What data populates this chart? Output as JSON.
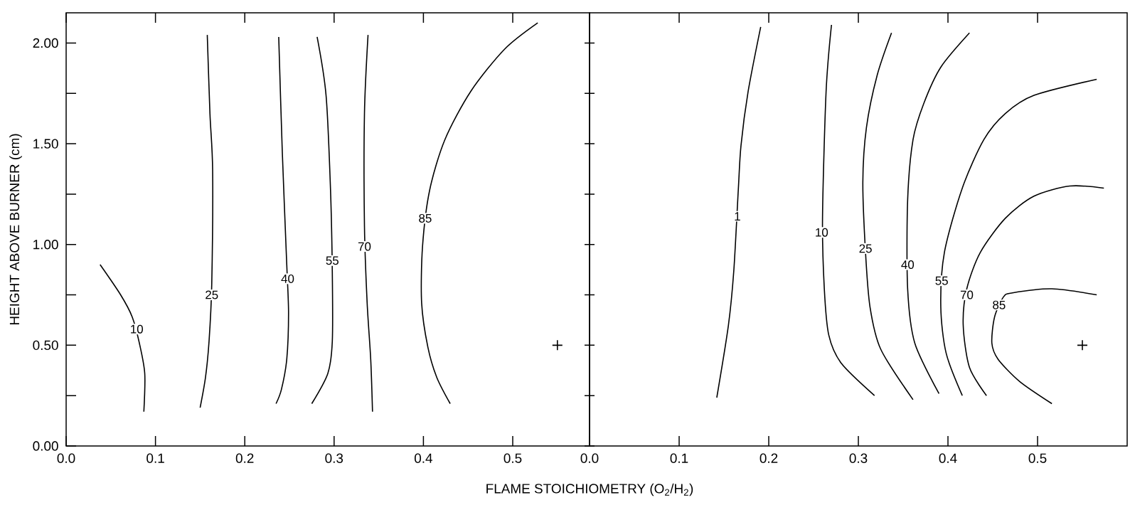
{
  "chart_data": [
    {
      "type": "line",
      "ylabel": "HEIGHT ABOVE BURNER (cm)",
      "xlabel": "FLAME STOICHIOMETRY (O$_{2}$/H$_{2}$)",
      "xlim": [
        0,
        0.586
      ],
      "ylim": [
        0,
        2.15
      ],
      "xticks": [
        {
          "value": 0,
          "label": "0.0"
        },
        {
          "value": 0.1,
          "label": "0.1"
        },
        {
          "value": 0.2,
          "label": "0.2"
        },
        {
          "value": 0.3,
          "label": "0.3"
        },
        {
          "value": 0.4,
          "label": "0.4"
        },
        {
          "value": 0.5,
          "label": "0.5"
        }
      ],
      "yticks": [
        {
          "value": 0,
          "label": "0.00"
        },
        {
          "value": 0.25,
          "label": null
        },
        {
          "value": 0.5,
          "label": "0.50"
        },
        {
          "value": 0.75,
          "label": null
        },
        {
          "value": 1.0,
          "label": "1.00"
        },
        {
          "value": 1.25,
          "label": null
        },
        {
          "value": 1.5,
          "label": "1.50"
        },
        {
          "value": 1.75,
          "label": null
        },
        {
          "value": 2.0,
          "label": "2.00"
        }
      ],
      "series": [
        {
          "color": "#000000",
          "x": [
            0.038,
            0.061,
            0.074,
            0.082,
            0.088,
            0.087
          ],
          "values": [
            0.9,
            0.75,
            0.64,
            0.51,
            0.36,
            0.17
          ]
        },
        {
          "color": "#000000",
          "x": [
            0.158,
            0.161,
            0.164,
            0.163,
            0.16,
            0.156,
            0.15
          ],
          "values": [
            2.04,
            1.65,
            1.37,
            0.8,
            0.52,
            0.34,
            0.19
          ]
        },
        {
          "color": "#000000",
          "x": [
            0.238,
            0.242,
            0.247,
            0.249,
            0.247,
            0.241,
            0.235
          ],
          "values": [
            2.03,
            1.46,
            0.9,
            0.66,
            0.43,
            0.28,
            0.21
          ]
        },
        {
          "color": "#000000",
          "x": [
            0.281,
            0.291,
            0.296,
            0.298,
            0.298,
            0.293,
            0.275
          ],
          "values": [
            2.03,
            1.74,
            1.27,
            0.86,
            0.52,
            0.36,
            0.21
          ]
        },
        {
          "color": "#000000",
          "x": [
            0.338,
            0.334,
            0.334,
            0.337,
            0.341,
            0.343
          ],
          "values": [
            2.04,
            1.65,
            1.09,
            0.71,
            0.43,
            0.17
          ]
        },
        {
          "color": "#000000",
          "x": [
            0.528,
            0.491,
            0.453,
            0.424,
            0.407,
            0.399,
            0.398,
            0.405,
            0.415,
            0.43
          ],
          "values": [
            2.1,
            1.97,
            1.76,
            1.52,
            1.27,
            0.99,
            0.71,
            0.49,
            0.34,
            0.21
          ]
        },
        {
          "type": "scatter",
          "marker": "cross",
          "color": "#000000",
          "x": [
            0.55
          ],
          "values": [
            0.5
          ]
        }
      ],
      "annotations": [
        {
          "text": "10",
          "x": 0.079,
          "y": 0.58
        },
        {
          "text": "25",
          "x": 0.163,
          "y": 0.75
        },
        {
          "text": "40",
          "x": 0.248,
          "y": 0.83
        },
        {
          "text": "55",
          "x": 0.298,
          "y": 0.92
        },
        {
          "text": "70",
          "x": 0.334,
          "y": 0.99
        },
        {
          "text": "85",
          "x": 0.402,
          "y": 1.13
        }
      ]
    },
    {
      "type": "line",
      "tick_labels": "x",
      "xlim": [
        0,
        0.6
      ],
      "ylim": [
        0,
        2.15
      ],
      "xticks": [
        {
          "value": 0,
          "label": "0.0"
        },
        {
          "value": 0.1,
          "label": "0.1"
        },
        {
          "value": 0.2,
          "label": "0.2"
        },
        {
          "value": 0.3,
          "label": "0.3"
        },
        {
          "value": 0.4,
          "label": "0.4"
        },
        {
          "value": 0.5,
          "label": "0.5"
        }
      ],
      "yticks": [
        {
          "value": 0,
          "label": null
        },
        {
          "value": 0.25,
          "label": null
        },
        {
          "value": 0.5,
          "label": null
        },
        {
          "value": 0.75,
          "label": null
        },
        {
          "value": 1.0,
          "label": null
        },
        {
          "value": 1.25,
          "label": null
        },
        {
          "value": 1.5,
          "label": null
        },
        {
          "value": 1.75,
          "label": null
        },
        {
          "value": 2.0,
          "label": null
        }
      ],
      "series": [
        {
          "color": "#000000",
          "x": [
            0.191,
            0.177,
            0.169,
            0.166,
            0.161,
            0.155,
            0.142
          ],
          "values": [
            2.08,
            1.76,
            1.49,
            1.27,
            0.87,
            0.6,
            0.24
          ]
        },
        {
          "color": "#000000",
          "x": [
            0.27,
            0.264,
            0.26,
            0.262,
            0.267,
            0.281,
            0.318
          ],
          "values": [
            2.09,
            1.76,
            1.13,
            0.78,
            0.55,
            0.41,
            0.25
          ]
        },
        {
          "color": "#000000",
          "x": [
            0.337,
            0.321,
            0.309,
            0.305,
            0.308,
            0.313,
            0.325,
            0.361
          ],
          "values": [
            2.05,
            1.84,
            1.58,
            1.31,
            0.96,
            0.69,
            0.48,
            0.23
          ]
        },
        {
          "color": "#000000",
          "x": [
            0.424,
            0.392,
            0.373,
            0.361,
            0.355,
            0.355,
            0.363,
            0.39
          ],
          "values": [
            2.05,
            1.88,
            1.7,
            1.52,
            1.22,
            0.78,
            0.51,
            0.26
          ]
        },
        {
          "color": "#000000",
          "x": [
            0.566,
            0.496,
            0.464,
            0.44,
            0.416,
            0.396,
            0.392,
            0.398,
            0.416
          ],
          "values": [
            1.82,
            1.74,
            1.65,
            1.52,
            1.28,
            0.96,
            0.69,
            0.46,
            0.25
          ]
        },
        {
          "color": "#000000",
          "x": [
            0.574,
            0.536,
            0.496,
            0.464,
            0.436,
            0.421,
            0.417,
            0.424,
            0.443
          ],
          "values": [
            1.28,
            1.29,
            1.24,
            1.13,
            0.96,
            0.78,
            0.6,
            0.39,
            0.25
          ]
        },
        {
          "color": "#000000",
          "x": [
            0.566,
            0.516,
            0.472,
            0.462,
            0.452,
            0.449,
            0.456,
            0.48,
            0.516
          ],
          "values": [
            0.75,
            0.78,
            0.76,
            0.74,
            0.64,
            0.51,
            0.43,
            0.32,
            0.21
          ]
        },
        {
          "type": "scatter",
          "marker": "cross",
          "color": "#000000",
          "x": [
            0.55
          ],
          "values": [
            0.5
          ]
        }
      ],
      "annotations": [
        {
          "text": "1",
          "x": 0.165,
          "y": 1.14
        },
        {
          "text": "10",
          "x": 0.259,
          "y": 1.06
        },
        {
          "text": "25",
          "x": 0.308,
          "y": 0.98
        },
        {
          "text": "40",
          "x": 0.355,
          "y": 0.9
        },
        {
          "text": "55",
          "x": 0.393,
          "y": 0.82
        },
        {
          "text": "70",
          "x": 0.421,
          "y": 0.75
        },
        {
          "text": "85",
          "x": 0.457,
          "y": 0.7
        }
      ]
    }
  ]
}
